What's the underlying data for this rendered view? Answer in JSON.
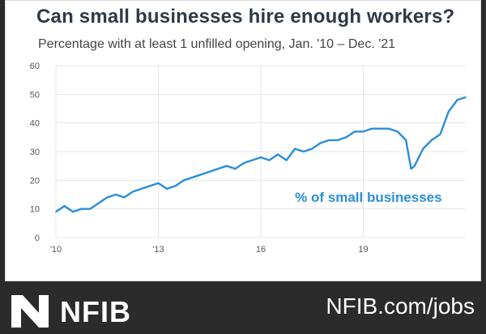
{
  "colors": {
    "series": "#2a8fd8",
    "grid": "#e6e6e6",
    "footer_bg": "#2b2b2b",
    "title": "#2f3a45"
  },
  "footer": {
    "brand": "NFIB",
    "url": "NFIB.com/jobs"
  },
  "chart_data": {
    "type": "line",
    "title": "Can small businesses hire enough workers?",
    "subtitle": "Percentage with at least 1 unfilled opening, Jan. '10 – Dec. '21",
    "xlabel": "",
    "ylabel": "",
    "ylim": [
      0,
      60
    ],
    "yticks": [
      "0",
      "10",
      "20",
      "30",
      "40",
      "50",
      "60"
    ],
    "xticks": [
      {
        "label": "'10",
        "x": 2010
      },
      {
        "label": "'13",
        "x": 2013
      },
      {
        "label": "16",
        "x": 2016
      },
      {
        "label": "19",
        "x": 2019
      }
    ],
    "xlim": [
      2010,
      2022
    ],
    "grid": true,
    "annotation": "% of small businesses",
    "series": [
      {
        "name": "% of small businesses",
        "x": [
          2010.0,
          2010.25,
          2010.5,
          2010.75,
          2011.0,
          2011.25,
          2011.5,
          2011.75,
          2012.0,
          2012.25,
          2012.5,
          2012.75,
          2013.0,
          2013.25,
          2013.5,
          2013.75,
          2014.0,
          2014.25,
          2014.5,
          2014.75,
          2015.0,
          2015.25,
          2015.5,
          2015.75,
          2016.0,
          2016.25,
          2016.5,
          2016.75,
          2017.0,
          2017.25,
          2017.5,
          2017.75,
          2018.0,
          2018.25,
          2018.5,
          2018.75,
          2019.0,
          2019.25,
          2019.5,
          2019.75,
          2020.0,
          2020.25,
          2020.4,
          2020.5,
          2020.75,
          2021.0,
          2021.25,
          2021.5,
          2021.75,
          2022.0
        ],
        "y": [
          9,
          11,
          9,
          10,
          10,
          12,
          14,
          15,
          14,
          16,
          17,
          18,
          19,
          17,
          18,
          20,
          21,
          22,
          23,
          24,
          25,
          24,
          26,
          27,
          28,
          27,
          29,
          27,
          31,
          30,
          31,
          33,
          34,
          34,
          35,
          37,
          37,
          38,
          38,
          38,
          37,
          34,
          24,
          25,
          31,
          34,
          36,
          44,
          48,
          49
        ]
      }
    ]
  }
}
